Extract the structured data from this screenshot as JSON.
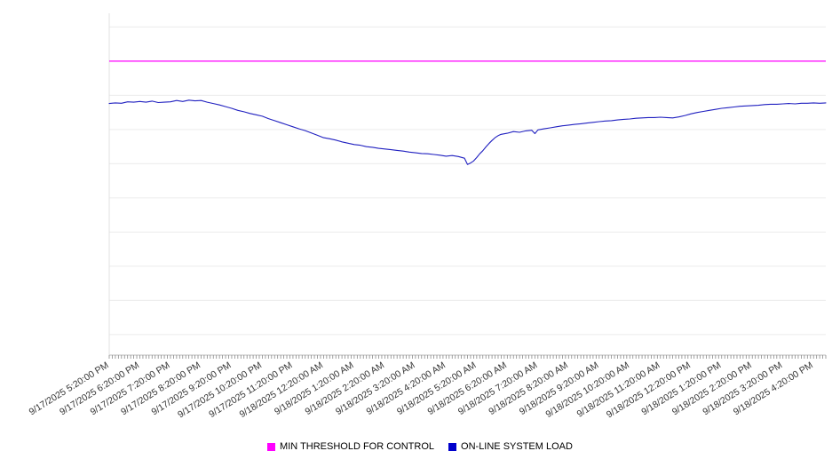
{
  "legend": {
    "items": [
      {
        "label": "MIN THRESHOLD FOR CONTROL",
        "color": "#ff00ff"
      },
      {
        "label": "ON-LINE SYSTEM LOAD",
        "color": "#0000cc"
      }
    ]
  },
  "chart_data": {
    "type": "line",
    "title": "",
    "xlabel": "",
    "ylabel": "",
    "grid": "horizontal",
    "legend_position": "bottom-center",
    "x_tick_labels": [
      "9/17/2025 5:20:00 PM",
      "9/17/2025 6:20:00 PM",
      "9/17/2025 7:20:00 PM",
      "9/17/2025 8:20:00 PM",
      "9/17/2025 9:20:00 PM",
      "9/17/2025 10:20:00 PM",
      "9/17/2025 11:20:00 PM",
      "9/18/2025 12:20:00 AM",
      "9/18/2025 1:20:00 AM",
      "9/18/2025 2:20:00 AM",
      "9/18/2025 3:20:00 AM",
      "9/18/2025 4:20:00 AM",
      "9/18/2025 5:20:00 AM",
      "9/18/2025 6:20:00 AM",
      "9/18/2025 7:20:00 AM",
      "9/18/2025 8:20:00 AM",
      "9/18/2025 9:20:00 AM",
      "9/18/2025 10:20:00 AM",
      "9/18/2025 11:20:00 AM",
      "9/18/2025 12:20:00 PM",
      "9/18/2025 1:20:00 PM",
      "9/18/2025 2:20:00 PM",
      "9/18/2025 3:20:00 PM",
      "9/18/2025 4:20:00 PM"
    ],
    "points_x_unit": "hours_since_first_tick",
    "xlim": [
      0,
      23.4
    ],
    "ylim": [
      0,
      100
    ],
    "y_tick_labels": [],
    "y_gridlines": [
      6,
      16,
      26,
      36,
      46,
      56,
      66,
      76,
      86,
      96
    ],
    "series": [
      {
        "name": "MIN THRESHOLD FOR CONTROL",
        "type": "threshold-line",
        "color": "#ff00ff",
        "value": 86
      },
      {
        "name": "ON-LINE SYSTEM LOAD",
        "type": "line",
        "color": "#2020c0",
        "points": [
          [
            0,
            73.6
          ],
          [
            0.2,
            73.8
          ],
          [
            0.4,
            73.7
          ],
          [
            0.6,
            74.1
          ],
          [
            0.8,
            74.0
          ],
          [
            1.0,
            74.2
          ],
          [
            1.2,
            74.0
          ],
          [
            1.4,
            74.3
          ],
          [
            1.6,
            73.9
          ],
          [
            1.8,
            74.0
          ],
          [
            2.0,
            74.1
          ],
          [
            2.2,
            74.5
          ],
          [
            2.4,
            74.2
          ],
          [
            2.6,
            74.6
          ],
          [
            2.8,
            74.4
          ],
          [
            3.0,
            74.5
          ],
          [
            3.2,
            74.0
          ],
          [
            3.4,
            73.6
          ],
          [
            3.6,
            73.2
          ],
          [
            3.8,
            72.7
          ],
          [
            4.0,
            72.2
          ],
          [
            4.2,
            71.6
          ],
          [
            4.4,
            71.2
          ],
          [
            4.6,
            70.7
          ],
          [
            4.8,
            70.3
          ],
          [
            5.0,
            69.9
          ],
          [
            5.2,
            69.2
          ],
          [
            5.4,
            68.6
          ],
          [
            5.6,
            68.0
          ],
          [
            5.8,
            67.4
          ],
          [
            6.0,
            66.8
          ],
          [
            6.2,
            66.2
          ],
          [
            6.4,
            65.7
          ],
          [
            6.6,
            65.0
          ],
          [
            6.8,
            64.3
          ],
          [
            7.0,
            63.6
          ],
          [
            7.2,
            63.3
          ],
          [
            7.4,
            62.9
          ],
          [
            7.6,
            62.4
          ],
          [
            7.8,
            62.0
          ],
          [
            8.0,
            61.6
          ],
          [
            8.2,
            61.4
          ],
          [
            8.4,
            61.0
          ],
          [
            8.6,
            60.8
          ],
          [
            8.8,
            60.5
          ],
          [
            9.0,
            60.3
          ],
          [
            9.2,
            60.1
          ],
          [
            9.4,
            59.9
          ],
          [
            9.6,
            59.7
          ],
          [
            9.8,
            59.4
          ],
          [
            10.0,
            59.2
          ],
          [
            10.2,
            59.0
          ],
          [
            10.4,
            58.9
          ],
          [
            10.6,
            58.7
          ],
          [
            10.8,
            58.5
          ],
          [
            11.0,
            58.2
          ],
          [
            11.2,
            58.4
          ],
          [
            11.4,
            58.1
          ],
          [
            11.6,
            57.6
          ],
          [
            11.7,
            55.8
          ],
          [
            11.8,
            56.2
          ],
          [
            11.9,
            56.8
          ],
          [
            12.0,
            57.8
          ],
          [
            12.1,
            58.9
          ],
          [
            12.2,
            59.8
          ],
          [
            12.3,
            60.9
          ],
          [
            12.4,
            61.9
          ],
          [
            12.5,
            62.8
          ],
          [
            12.6,
            63.6
          ],
          [
            12.7,
            64.2
          ],
          [
            12.8,
            64.6
          ],
          [
            13.0,
            64.9
          ],
          [
            13.2,
            65.4
          ],
          [
            13.4,
            65.2
          ],
          [
            13.6,
            65.6
          ],
          [
            13.8,
            65.8
          ],
          [
            13.9,
            64.8
          ],
          [
            14.0,
            65.9
          ],
          [
            14.2,
            66.2
          ],
          [
            14.4,
            66.5
          ],
          [
            14.6,
            66.8
          ],
          [
            14.8,
            67.1
          ],
          [
            15.0,
            67.3
          ],
          [
            15.2,
            67.5
          ],
          [
            15.4,
            67.7
          ],
          [
            15.6,
            67.9
          ],
          [
            15.8,
            68.1
          ],
          [
            16.0,
            68.3
          ],
          [
            16.2,
            68.5
          ],
          [
            16.4,
            68.6
          ],
          [
            16.6,
            68.8
          ],
          [
            16.8,
            69.0
          ],
          [
            17.0,
            69.1
          ],
          [
            17.2,
            69.3
          ],
          [
            17.4,
            69.4
          ],
          [
            17.6,
            69.5
          ],
          [
            17.8,
            69.5
          ],
          [
            18.0,
            69.6
          ],
          [
            18.2,
            69.5
          ],
          [
            18.4,
            69.4
          ],
          [
            18.6,
            69.7
          ],
          [
            18.8,
            70.1
          ],
          [
            19.0,
            70.6
          ],
          [
            19.2,
            71.0
          ],
          [
            19.4,
            71.3
          ],
          [
            19.6,
            71.6
          ],
          [
            19.8,
            71.9
          ],
          [
            20.0,
            72.2
          ],
          [
            20.2,
            72.4
          ],
          [
            20.4,
            72.6
          ],
          [
            20.6,
            72.8
          ],
          [
            20.8,
            72.9
          ],
          [
            21.0,
            73.0
          ],
          [
            21.2,
            73.1
          ],
          [
            21.4,
            73.3
          ],
          [
            21.6,
            73.4
          ],
          [
            21.8,
            73.4
          ],
          [
            22.0,
            73.5
          ],
          [
            22.2,
            73.6
          ],
          [
            22.4,
            73.5
          ],
          [
            22.6,
            73.7
          ],
          [
            22.8,
            73.7
          ],
          [
            23.0,
            73.8
          ],
          [
            23.2,
            73.7
          ],
          [
            23.4,
            73.8
          ]
        ]
      }
    ]
  }
}
